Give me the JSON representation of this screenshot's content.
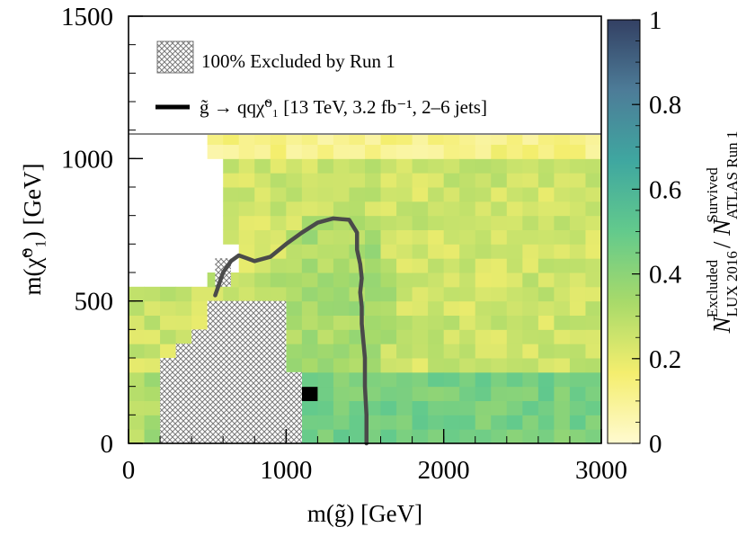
{
  "chart_data": {
    "type": "heatmap",
    "xlabel": "m(g̃) [GeV]",
    "ylabel": "m(χ̃⁰₁) [GeV]",
    "xlim": [
      0,
      3000
    ],
    "ylim": [
      0,
      1500
    ],
    "x_ticks": [
      "0",
      "1000",
      "2000",
      "3000"
    ],
    "y_ticks": [
      "0",
      "500",
      "1000",
      "1500"
    ],
    "colorbar": {
      "label": "N(Excluded, LUX 2016) / N(Survived, ATLAS Run 1)",
      "range": [
        0,
        1
      ],
      "ticks": [
        "0",
        "0.2",
        "0.4",
        "0.6",
        "0.8",
        "1"
      ],
      "colors": [
        "#fffad0",
        "#f4ee6e",
        "#a8da6a",
        "#63ca8c",
        "#3fa7a0",
        "#4d7c98",
        "#334063"
      ]
    },
    "bin_width_gev": 100,
    "bin_height_gev": 50,
    "grid_upper_limit_gev": 1100,
    "value_summary": {
      "above_1000_gev": 0.12,
      "bulk_region": 0.25,
      "near_contour": 0.33,
      "lowest_rows_below_250_gev": 0.45,
      "peak_bin": {
        "m_gluino": 1150,
        "m_neutralino": 175,
        "value": 1.0
      }
    },
    "excluded_run1_region": {
      "label": "100% Excluded by Run 1",
      "boundary_gev": [
        [
          200,
          0
        ],
        [
          1100,
          0
        ],
        [
          1100,
          250
        ],
        [
          1000,
          250
        ],
        [
          1000,
          500
        ],
        [
          500,
          500
        ],
        [
          500,
          400
        ],
        [
          400,
          400
        ],
        [
          400,
          350
        ],
        [
          300,
          350
        ],
        [
          300,
          300
        ],
        [
          200,
          300
        ]
      ],
      "extra_box_gev": [
        [
          550,
          550
        ],
        [
          650,
          650
        ]
      ]
    },
    "contour": {
      "label": "g̃ → qqχ̃⁰₁ [13 TeV, 3.2 fb⁻¹, 2–6 jets]",
      "color": "#4a4a4a",
      "points_gev": [
        [
          550,
          520
        ],
        [
          600,
          600
        ],
        [
          650,
          640
        ],
        [
          700,
          660
        ],
        [
          750,
          650
        ],
        [
          800,
          640
        ],
        [
          900,
          655
        ],
        [
          1000,
          700
        ],
        [
          1100,
          740
        ],
        [
          1200,
          775
        ],
        [
          1300,
          790
        ],
        [
          1400,
          785
        ],
        [
          1450,
          740
        ],
        [
          1450,
          680
        ],
        [
          1470,
          630
        ],
        [
          1480,
          580
        ],
        [
          1470,
          530
        ],
        [
          1480,
          480
        ],
        [
          1480,
          420
        ],
        [
          1490,
          360
        ],
        [
          1500,
          300
        ],
        [
          1500,
          200
        ],
        [
          1510,
          100
        ],
        [
          1510,
          0
        ]
      ]
    }
  }
}
